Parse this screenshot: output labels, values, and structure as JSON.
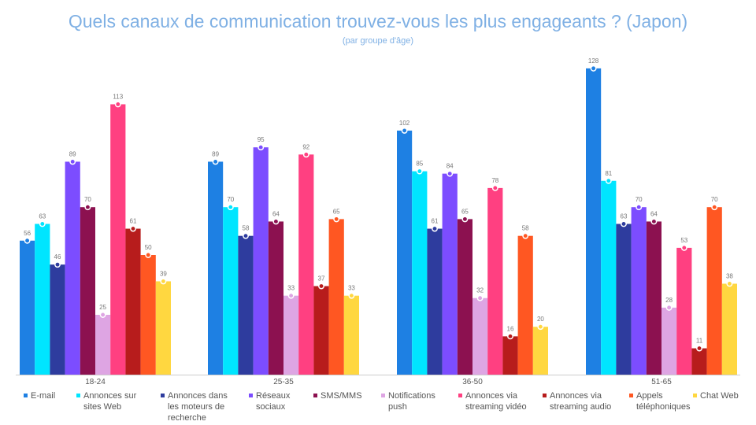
{
  "chart_data": {
    "type": "bar",
    "title": "Quels canaux de communication trouvez-vous les plus engageants ? (Japon)",
    "subtitle": "(par groupe d'âge)",
    "categories": [
      "18-24",
      "25-35",
      "36-50",
      "51-65"
    ],
    "ylim": [
      0,
      135
    ],
    "grid": false,
    "legend_position": "bottom",
    "series": [
      {
        "name": "E-mail",
        "legend": "E-mail",
        "color": "#1e80e3",
        "values": [
          56,
          89,
          102,
          128
        ]
      },
      {
        "name": "Annonces sur sites Web",
        "legend": "Annonces sur\nsites Web",
        "color": "#00e5ff",
        "values": [
          63,
          70,
          85,
          81
        ]
      },
      {
        "name": "Annonces dans les moteurs de recherche",
        "legend": "Annonces dans\nles moteurs de\nrecherche",
        "color": "#2e3c9e",
        "values": [
          46,
          58,
          61,
          63
        ]
      },
      {
        "name": "Réseaux sociaux",
        "legend": "Réseaux\nsociaux",
        "color": "#7c4dff",
        "values": [
          89,
          95,
          84,
          70
        ]
      },
      {
        "name": "SMS/MMS",
        "legend": "SMS/MMS",
        "color": "#8c1150",
        "values": [
          70,
          64,
          65,
          64
        ]
      },
      {
        "name": "Notifications push",
        "legend": "Notifications\npush",
        "color": "#dea5e3",
        "values": [
          25,
          33,
          32,
          28
        ]
      },
      {
        "name": "Annonces via streaming vidéo",
        "legend": "Annonces via\nstreaming vidéo",
        "color": "#ff4081",
        "values": [
          113,
          92,
          78,
          53
        ]
      },
      {
        "name": "Annonces via streaming audio",
        "legend": "Annonces via\nstreaming audio",
        "color": "#b71c1c",
        "values": [
          61,
          37,
          16,
          11
        ]
      },
      {
        "name": "Appels téléphoniques",
        "legend": "Appels\ntéléphoniques",
        "color": "#ff5722",
        "values": [
          50,
          65,
          58,
          70
        ]
      },
      {
        "name": "Chat Web",
        "legend": "Chat Web",
        "color": "#ffd740",
        "values": [
          39,
          33,
          20,
          38
        ]
      }
    ]
  }
}
